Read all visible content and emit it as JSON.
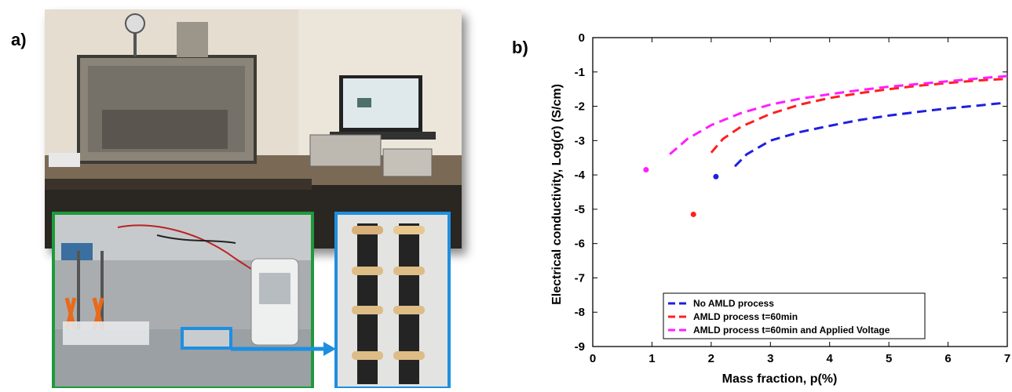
{
  "panels": {
    "a": "a)",
    "b": "b)"
  },
  "chart_data": {
    "type": "line",
    "xlabel": "Mass fraction, p(%)",
    "ylabel": "Electrical conductivity, Log(σ) (S/cm)",
    "xlim": [
      0,
      7
    ],
    "ylim": [
      -9,
      0
    ],
    "xticks": [
      0,
      1,
      2,
      3,
      4,
      5,
      6,
      7
    ],
    "yticks": [
      0,
      -1,
      -2,
      -3,
      -4,
      -5,
      -6,
      -7,
      -8,
      -9
    ],
    "grid": false,
    "legend_position": "bottom-left",
    "series": [
      {
        "name": "No AMLD process",
        "color": "#1f1fe0",
        "point": {
          "x": 2.08,
          "y": -4.05
        },
        "x": [
          2.4,
          2.6,
          3.0,
          3.5,
          4.0,
          4.5,
          5.0,
          5.5,
          6.0,
          6.5,
          6.95
        ],
        "y": [
          -3.75,
          -3.4,
          -3.0,
          -2.75,
          -2.57,
          -2.4,
          -2.27,
          -2.16,
          -2.06,
          -1.98,
          -1.9
        ]
      },
      {
        "name": "AMLD process t=60min",
        "color": "#ff1f1f",
        "point": {
          "x": 1.7,
          "y": -5.15
        },
        "x": [
          2.0,
          2.2,
          2.5,
          3.0,
          3.5,
          4.0,
          4.5,
          5.0,
          5.5,
          6.0,
          6.5,
          7.0
        ],
        "y": [
          -3.35,
          -2.95,
          -2.6,
          -2.22,
          -1.95,
          -1.76,
          -1.62,
          -1.5,
          -1.4,
          -1.32,
          -1.25,
          -1.2
        ]
      },
      {
        "name": "AMLD process t=60min and Applied Voltage",
        "color": "#ff1fff",
        "point": {
          "x": 0.9,
          "y": -3.85
        },
        "x": [
          1.3,
          1.6,
          2.0,
          2.5,
          3.0,
          3.5,
          4.0,
          4.5,
          5.0,
          5.5,
          6.0,
          6.5,
          7.0
        ],
        "y": [
          -3.4,
          -2.95,
          -2.55,
          -2.2,
          -1.95,
          -1.78,
          -1.65,
          -1.53,
          -1.43,
          -1.35,
          -1.27,
          -1.19,
          -1.12
        ]
      }
    ]
  }
}
